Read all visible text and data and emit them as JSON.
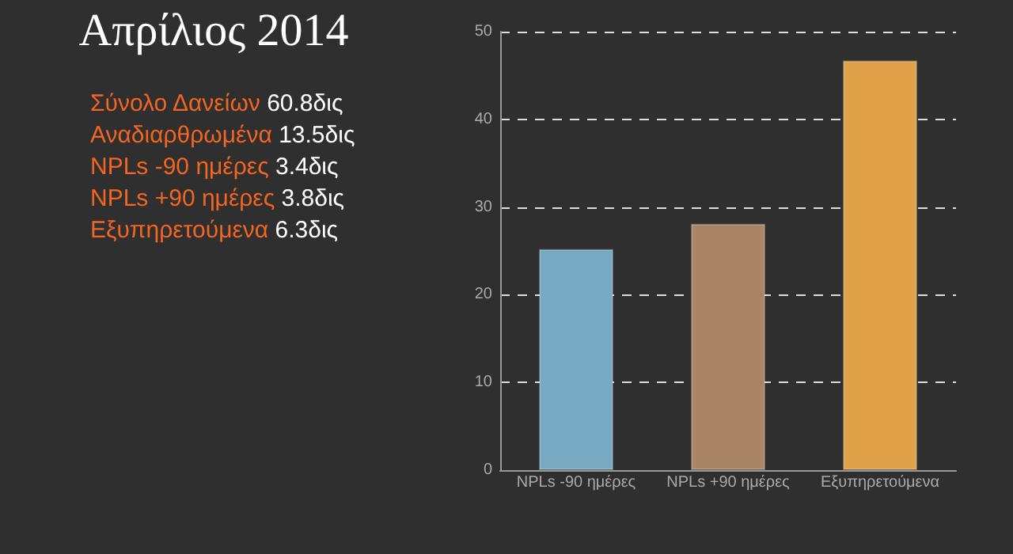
{
  "chart_data": {
    "type": "bar",
    "title": "Απρίλιος 2014",
    "annotations": [
      "Σύνολο Δανείων 60.8δις",
      "Αναδιαρθρωμένα 13.5δις",
      "NPLs -90 ημέρες 3.4δις",
      "NPLs +90 ημέρες 3.8δις",
      "Εξυπηρετούμενα 6.3δις"
    ],
    "categories": [
      "NPLs -90 ημέρες",
      "NPLs +90 ημέρες",
      "Εξυπηρετούμενα"
    ],
    "values": [
      25.2,
      28.1,
      46.7
    ],
    "colors": [
      "#79aac4",
      "#a98566",
      "#e0a048"
    ],
    "ylim": [
      0,
      50
    ],
    "yticks": [
      0,
      10,
      20,
      30,
      40,
      50
    ],
    "grid": "y"
  }
}
